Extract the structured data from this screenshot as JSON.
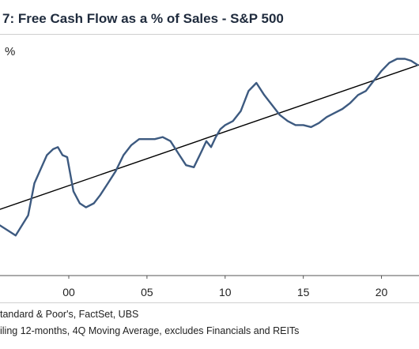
{
  "header": {
    "title": "7: Free Cash Flow as a % of Sales - S&P 500",
    "unit": "%"
  },
  "footer": {
    "source": "tandard & Poor's, FactSet, UBS",
    "note": "iling 12-months, 4Q Moving Average, excludes Financials and REITs"
  },
  "colors": {
    "series": "#3d5a80",
    "trend": "#000000",
    "axis": "#555555"
  },
  "chart_data": {
    "type": "line",
    "xlabel": "",
    "ylabel": "%",
    "xlim": [
      1995.6,
      2022.4
    ],
    "ylim": [
      0,
      12
    ],
    "x_ticks": [
      2000,
      2005,
      2010,
      2015,
      2020
    ],
    "x_tick_labels": [
      "00",
      "05",
      "10",
      "15",
      "20"
    ],
    "grid": false,
    "series": [
      {
        "points": [
          [
            1995.6,
            2.5
          ],
          [
            1996.2,
            2.2
          ],
          [
            1996.6,
            2.0
          ],
          [
            1997.0,
            2.5
          ],
          [
            1997.4,
            3.0
          ],
          [
            1997.8,
            4.6
          ],
          [
            1998.2,
            5.3
          ],
          [
            1998.6,
            6.0
          ],
          [
            1999.0,
            6.3
          ],
          [
            1999.3,
            6.4
          ],
          [
            1999.6,
            6.0
          ],
          [
            1999.9,
            5.9
          ],
          [
            2000.3,
            4.2
          ],
          [
            2000.7,
            3.6
          ],
          [
            2001.1,
            3.4
          ],
          [
            2001.6,
            3.6
          ],
          [
            2002.0,
            4.0
          ],
          [
            2002.5,
            4.6
          ],
          [
            2003.0,
            5.2
          ],
          [
            2003.5,
            6.0
          ],
          [
            2004.0,
            6.5
          ],
          [
            2004.5,
            6.8
          ],
          [
            2005.0,
            6.8
          ],
          [
            2005.5,
            6.8
          ],
          [
            2006.0,
            6.9
          ],
          [
            2006.5,
            6.7
          ],
          [
            2007.0,
            6.1
          ],
          [
            2007.5,
            5.5
          ],
          [
            2008.0,
            5.4
          ],
          [
            2008.5,
            6.2
          ],
          [
            2008.8,
            6.7
          ],
          [
            2009.1,
            6.4
          ],
          [
            2009.4,
            6.9
          ],
          [
            2009.7,
            7.3
          ],
          [
            2010.0,
            7.5
          ],
          [
            2010.5,
            7.7
          ],
          [
            2011.0,
            8.2
          ],
          [
            2011.5,
            9.2
          ],
          [
            2012.0,
            9.6
          ],
          [
            2012.5,
            9.0
          ],
          [
            2013.0,
            8.5
          ],
          [
            2013.5,
            8.0
          ],
          [
            2014.0,
            7.7
          ],
          [
            2014.5,
            7.5
          ],
          [
            2015.0,
            7.5
          ],
          [
            2015.5,
            7.4
          ],
          [
            2016.0,
            7.6
          ],
          [
            2016.5,
            7.9
          ],
          [
            2017.0,
            8.1
          ],
          [
            2017.5,
            8.3
          ],
          [
            2018.0,
            8.6
          ],
          [
            2018.5,
            9.0
          ],
          [
            2019.0,
            9.2
          ],
          [
            2019.5,
            9.7
          ],
          [
            2020.0,
            10.2
          ],
          [
            2020.5,
            10.6
          ],
          [
            2021.0,
            10.8
          ],
          [
            2021.5,
            10.8
          ],
          [
            2021.9,
            10.7
          ],
          [
            2022.3,
            10.5
          ]
        ]
      }
    ],
    "trendline": [
      [
        1995.6,
        3.3
      ],
      [
        2022.4,
        10.5
      ]
    ]
  }
}
